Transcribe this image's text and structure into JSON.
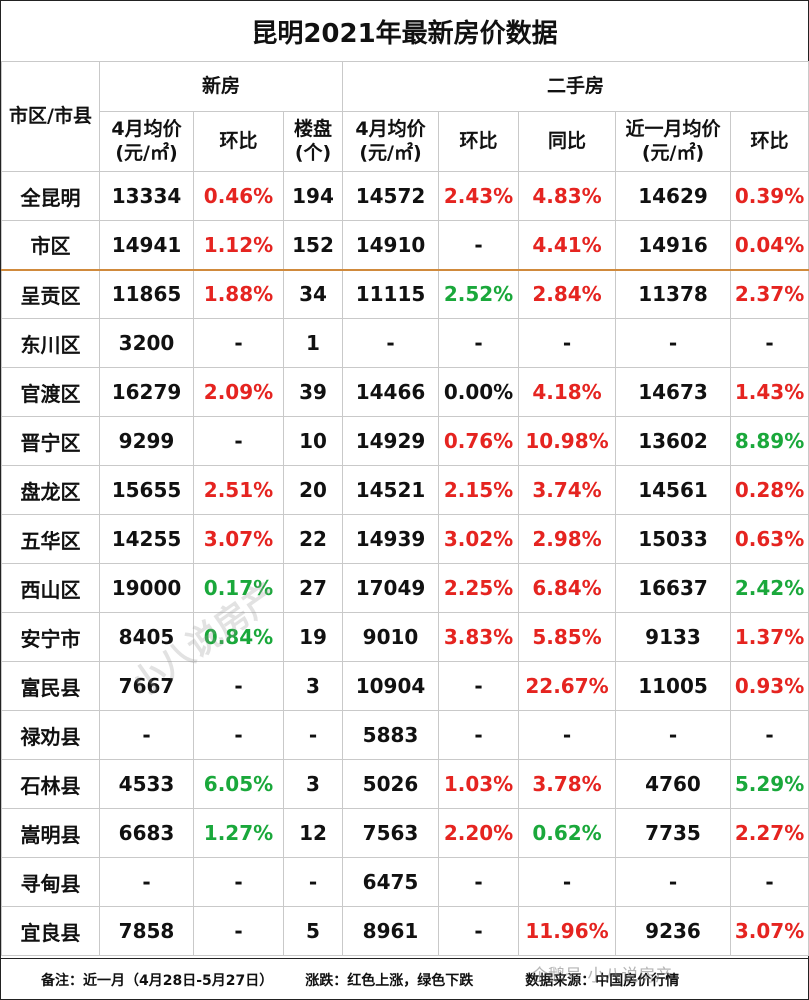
{
  "title": "昆明2021年最新房价数据",
  "header": {
    "region": "市区/市县",
    "new_house": "新房",
    "second_hand": "二手房",
    "new_price": "4月均价(元/㎡)",
    "new_mom": "环比",
    "new_projects": "楼盘(个)",
    "sh_price": "4月均价(元/㎡)",
    "sh_mom": "环比",
    "sh_yoy": "同比",
    "sh_month_price": "近一月均价(元/㎡)",
    "sh_month_mom": "环比"
  },
  "rows": [
    {
      "name": "全昆明",
      "new_price": "13334",
      "new_mom": "0.46%",
      "new_mom_c": "red",
      "projects": "194",
      "sh_price": "14572",
      "sh_mom": "2.43%",
      "sh_mom_c": "red",
      "sh_yoy": "4.83%",
      "sh_yoy_c": "red",
      "m_price": "14629",
      "m_mom": "0.39%",
      "m_mom_c": "red"
    },
    {
      "name": "市区",
      "new_price": "14941",
      "new_mom": "1.12%",
      "new_mom_c": "red",
      "projects": "152",
      "sh_price": "14910",
      "sh_mom": "-",
      "sh_mom_c": "",
      "sh_yoy": "4.41%",
      "sh_yoy_c": "red",
      "m_price": "14916",
      "m_mom": "0.04%",
      "m_mom_c": "red"
    },
    {
      "name": "呈贡区",
      "new_price": "11865",
      "new_mom": "1.88%",
      "new_mom_c": "red",
      "projects": "34",
      "sh_price": "11115",
      "sh_mom": "2.52%",
      "sh_mom_c": "green",
      "sh_yoy": "2.84%",
      "sh_yoy_c": "red",
      "m_price": "11378",
      "m_mom": "2.37%",
      "m_mom_c": "red"
    },
    {
      "name": "东川区",
      "new_price": "3200",
      "new_mom": "-",
      "new_mom_c": "",
      "projects": "1",
      "sh_price": "-",
      "sh_mom": "-",
      "sh_mom_c": "",
      "sh_yoy": "-",
      "sh_yoy_c": "",
      "m_price": "-",
      "m_mom": "-",
      "m_mom_c": ""
    },
    {
      "name": "官渡区",
      "new_price": "16279",
      "new_mom": "2.09%",
      "new_mom_c": "red",
      "projects": "39",
      "sh_price": "14466",
      "sh_mom": "0.00%",
      "sh_mom_c": "",
      "sh_yoy": "4.18%",
      "sh_yoy_c": "red",
      "m_price": "14673",
      "m_mom": "1.43%",
      "m_mom_c": "red"
    },
    {
      "name": "晋宁区",
      "new_price": "9299",
      "new_mom": "-",
      "new_mom_c": "",
      "projects": "10",
      "sh_price": "14929",
      "sh_mom": "0.76%",
      "sh_mom_c": "red",
      "sh_yoy": "10.98%",
      "sh_yoy_c": "red",
      "m_price": "13602",
      "m_mom": "8.89%",
      "m_mom_c": "green"
    },
    {
      "name": "盘龙区",
      "new_price": "15655",
      "new_mom": "2.51%",
      "new_mom_c": "red",
      "projects": "20",
      "sh_price": "14521",
      "sh_mom": "2.15%",
      "sh_mom_c": "red",
      "sh_yoy": "3.74%",
      "sh_yoy_c": "red",
      "m_price": "14561",
      "m_mom": "0.28%",
      "m_mom_c": "red"
    },
    {
      "name": "五华区",
      "new_price": "14255",
      "new_mom": "3.07%",
      "new_mom_c": "red",
      "projects": "22",
      "sh_price": "14939",
      "sh_mom": "3.02%",
      "sh_mom_c": "red",
      "sh_yoy": "2.98%",
      "sh_yoy_c": "red",
      "m_price": "15033",
      "m_mom": "0.63%",
      "m_mom_c": "red"
    },
    {
      "name": "西山区",
      "new_price": "19000",
      "new_mom": "0.17%",
      "new_mom_c": "green",
      "projects": "27",
      "sh_price": "17049",
      "sh_mom": "2.25%",
      "sh_mom_c": "red",
      "sh_yoy": "6.84%",
      "sh_yoy_c": "red",
      "m_price": "16637",
      "m_mom": "2.42%",
      "m_mom_c": "green"
    },
    {
      "name": "安宁市",
      "new_price": "8405",
      "new_mom": "0.84%",
      "new_mom_c": "green",
      "projects": "19",
      "sh_price": "9010",
      "sh_mom": "3.83%",
      "sh_mom_c": "red",
      "sh_yoy": "5.85%",
      "sh_yoy_c": "red",
      "m_price": "9133",
      "m_mom": "1.37%",
      "m_mom_c": "red"
    },
    {
      "name": "富民县",
      "new_price": "7667",
      "new_mom": "-",
      "new_mom_c": "",
      "projects": "3",
      "sh_price": "10904",
      "sh_mom": "-",
      "sh_mom_c": "",
      "sh_yoy": "22.67%",
      "sh_yoy_c": "red",
      "m_price": "11005",
      "m_mom": "0.93%",
      "m_mom_c": "red"
    },
    {
      "name": "禄劝县",
      "new_price": "-",
      "new_mom": "-",
      "new_mom_c": "",
      "projects": "-",
      "sh_price": "5883",
      "sh_mom": "-",
      "sh_mom_c": "",
      "sh_yoy": "-",
      "sh_yoy_c": "",
      "m_price": "-",
      "m_mom": "-",
      "m_mom_c": ""
    },
    {
      "name": "石林县",
      "new_price": "4533",
      "new_mom": "6.05%",
      "new_mom_c": "green",
      "projects": "3",
      "sh_price": "5026",
      "sh_mom": "1.03%",
      "sh_mom_c": "red",
      "sh_yoy": "3.78%",
      "sh_yoy_c": "red",
      "m_price": "4760",
      "m_mom": "5.29%",
      "m_mom_c": "green"
    },
    {
      "name": "嵩明县",
      "new_price": "6683",
      "new_mom": "1.27%",
      "new_mom_c": "green",
      "projects": "12",
      "sh_price": "7563",
      "sh_mom": "2.20%",
      "sh_mom_c": "red",
      "sh_yoy": "0.62%",
      "sh_yoy_c": "green",
      "m_price": "7735",
      "m_mom": "2.27%",
      "m_mom_c": "red"
    },
    {
      "name": "寻甸县",
      "new_price": "-",
      "new_mom": "-",
      "new_mom_c": "",
      "projects": "-",
      "sh_price": "6475",
      "sh_mom": "-",
      "sh_mom_c": "",
      "sh_yoy": "-",
      "sh_yoy_c": "",
      "m_price": "-",
      "m_mom": "-",
      "m_mom_c": ""
    },
    {
      "name": "宜良县",
      "new_price": "7858",
      "new_mom": "-",
      "new_mom_c": "",
      "projects": "5",
      "sh_price": "8961",
      "sh_mom": "-",
      "sh_mom_c": "",
      "sh_yoy": "11.96%",
      "sh_yoy_c": "red",
      "m_price": "9236",
      "m_mom": "3.07%",
      "m_mom_c": "red"
    }
  ],
  "footer": {
    "note": "备注：近一月（4月28日-5月27日）",
    "legend": "涨跌：红色上涨，绿色下跌",
    "source": "数据来源：中国房价行情"
  },
  "watermark": "小八说房产",
  "watermark2": "企鹅号 小八说房产",
  "colors": {
    "up": "#e52420",
    "down": "#1aa83b",
    "separator": "#d08a3c"
  }
}
